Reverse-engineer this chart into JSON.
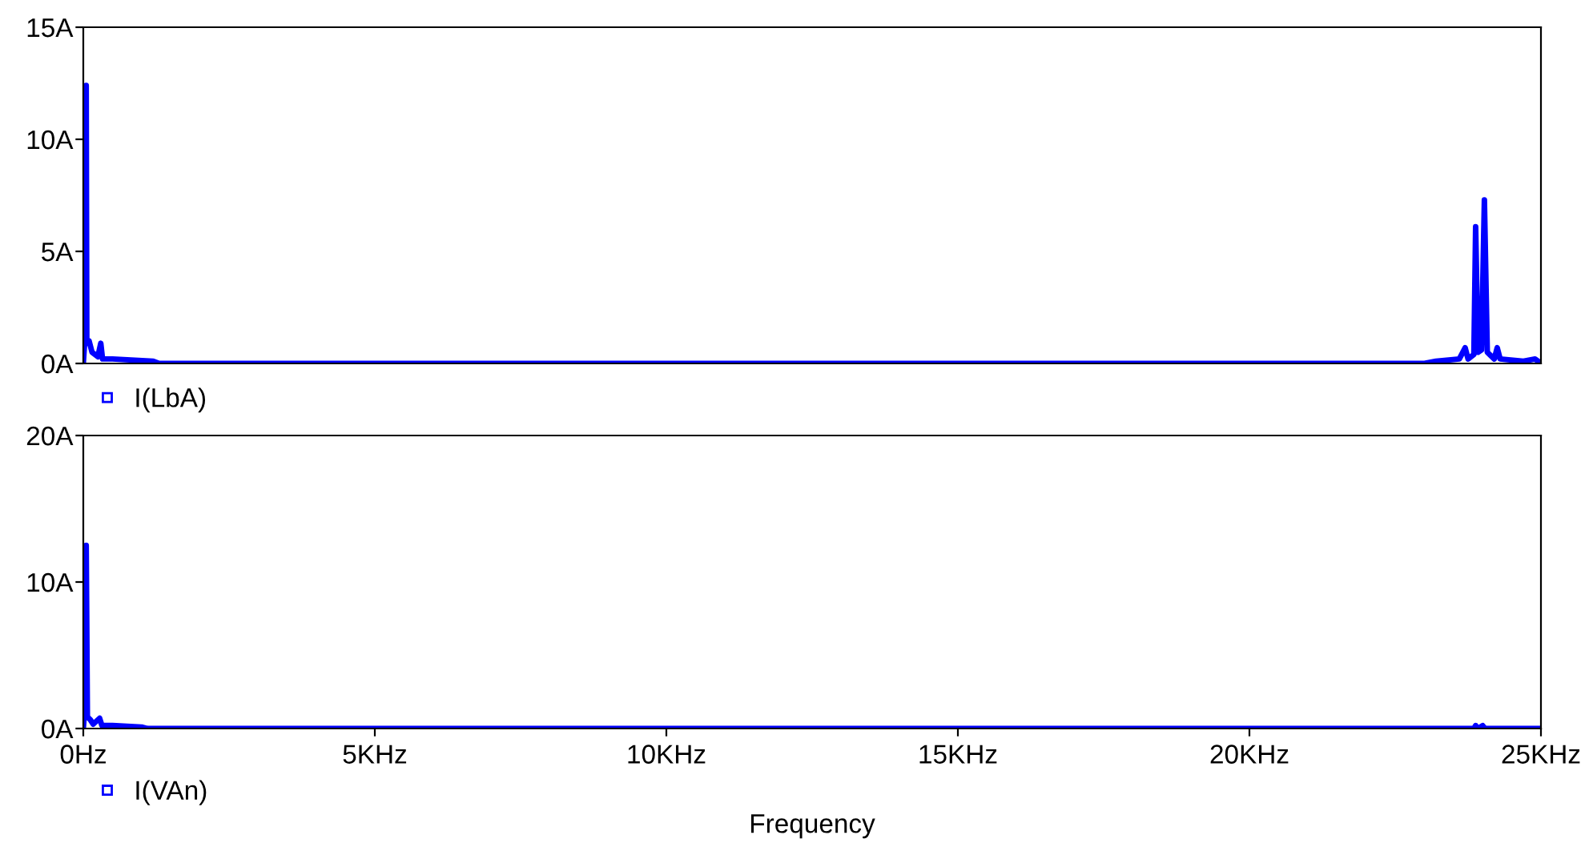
{
  "chart_data": [
    {
      "type": "line",
      "xlim": [
        0,
        25
      ],
      "ylim": [
        0,
        15
      ],
      "yticks": [
        {
          "value": 0,
          "label": "0A"
        },
        {
          "value": 5,
          "label": "5A"
        },
        {
          "value": 10,
          "label": "10A"
        },
        {
          "value": 15,
          "label": "15A"
        }
      ],
      "tick_labels": "y",
      "grid": false,
      "legend": "bottom left",
      "line_style": "solid",
      "series": [
        {
          "name": "I(LbA)",
          "color": "#0000ff",
          "x": [
            0,
            0.02,
            0.05,
            0.06,
            0.1,
            0.15,
            0.25,
            0.3,
            0.33,
            0.5,
            1.2,
            1.3,
            23,
            23.2,
            23.6,
            23.7,
            23.75,
            23.85,
            23.88,
            23.92,
            23.98,
            24.03,
            24.08,
            24.2,
            24.25,
            24.3,
            24.7,
            24.9,
            25
          ],
          "values": [
            0,
            0.8,
            12.4,
            0.9,
            1.0,
            0.5,
            0.3,
            0.9,
            0.2,
            0.2,
            0.1,
            0,
            0,
            0.1,
            0.2,
            0.7,
            0.2,
            0.4,
            6.1,
            0.5,
            0.6,
            7.3,
            0.5,
            0.2,
            0.7,
            0.2,
            0.1,
            0.2,
            0
          ]
        }
      ]
    },
    {
      "type": "line",
      "xlim": [
        0,
        25
      ],
      "ylim": [
        0,
        20
      ],
      "yticks": [
        {
          "value": 0,
          "label": "0A"
        },
        {
          "value": 10,
          "label": "10A"
        },
        {
          "value": 20,
          "label": "20A"
        }
      ],
      "xticks": [
        {
          "value": 0,
          "label": "0Hz"
        },
        {
          "value": 5,
          "label": "5KHz"
        },
        {
          "value": 10,
          "label": "10KHz"
        },
        {
          "value": 15,
          "label": "15KHz"
        },
        {
          "value": 20,
          "label": "20KHz"
        },
        {
          "value": 25,
          "label": "25KHz"
        }
      ],
      "xlabel": "Frequency",
      "grid": false,
      "legend": "bottom left",
      "line_style": "solid",
      "series": [
        {
          "name": "I(VAn)",
          "color": "#0000ff",
          "x": [
            0,
            0.02,
            0.05,
            0.07,
            0.12,
            0.17,
            0.28,
            0.32,
            0.5,
            1.0,
            1.1,
            23.85,
            23.88,
            23.92,
            24.0,
            24.04,
            25
          ],
          "values": [
            0,
            1.0,
            12.5,
            0.8,
            0.6,
            0.3,
            0.7,
            0.2,
            0.2,
            0.1,
            0,
            0,
            0.2,
            0,
            0.2,
            0,
            0
          ]
        }
      ]
    }
  ]
}
